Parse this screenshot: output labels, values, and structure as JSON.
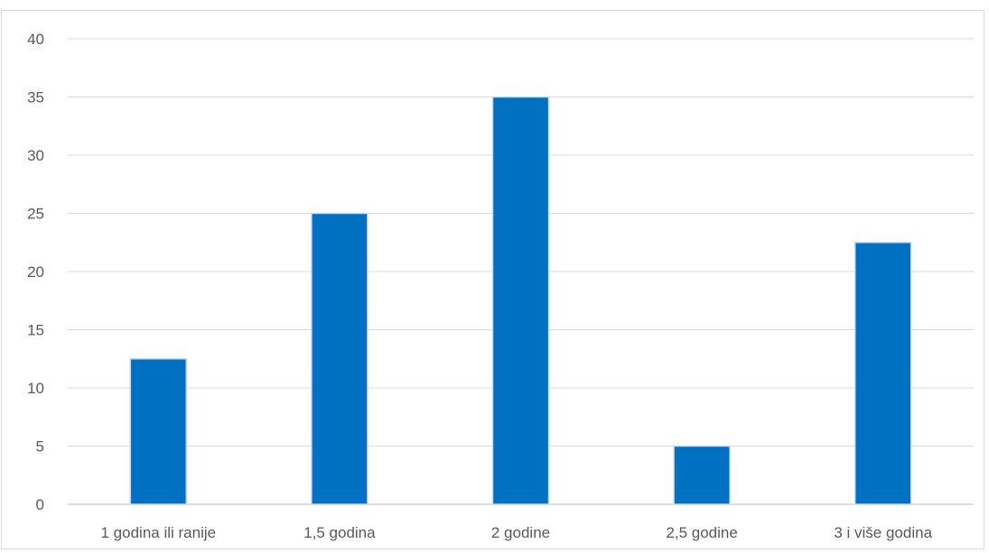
{
  "chart_data": {
    "type": "bar",
    "title": "",
    "xlabel": "",
    "ylabel": "",
    "categories": [
      "1 godina ili ranije",
      "1,5 godina",
      "2 godine",
      "2,5 godine",
      "3 i više godina"
    ],
    "values": [
      12.5,
      25,
      35,
      5,
      22.5
    ],
    "ylim": [
      0,
      40
    ],
    "yticks": [
      0,
      5,
      10,
      15,
      20,
      25,
      30,
      35,
      40
    ],
    "grid": true,
    "legend": "none",
    "colors": {
      "bar": "#0070c0",
      "bar_edge": "#c5d9f1",
      "grid": "#d9d9d9",
      "axis": "#bfbfbf",
      "tick_text": "#595959"
    }
  }
}
